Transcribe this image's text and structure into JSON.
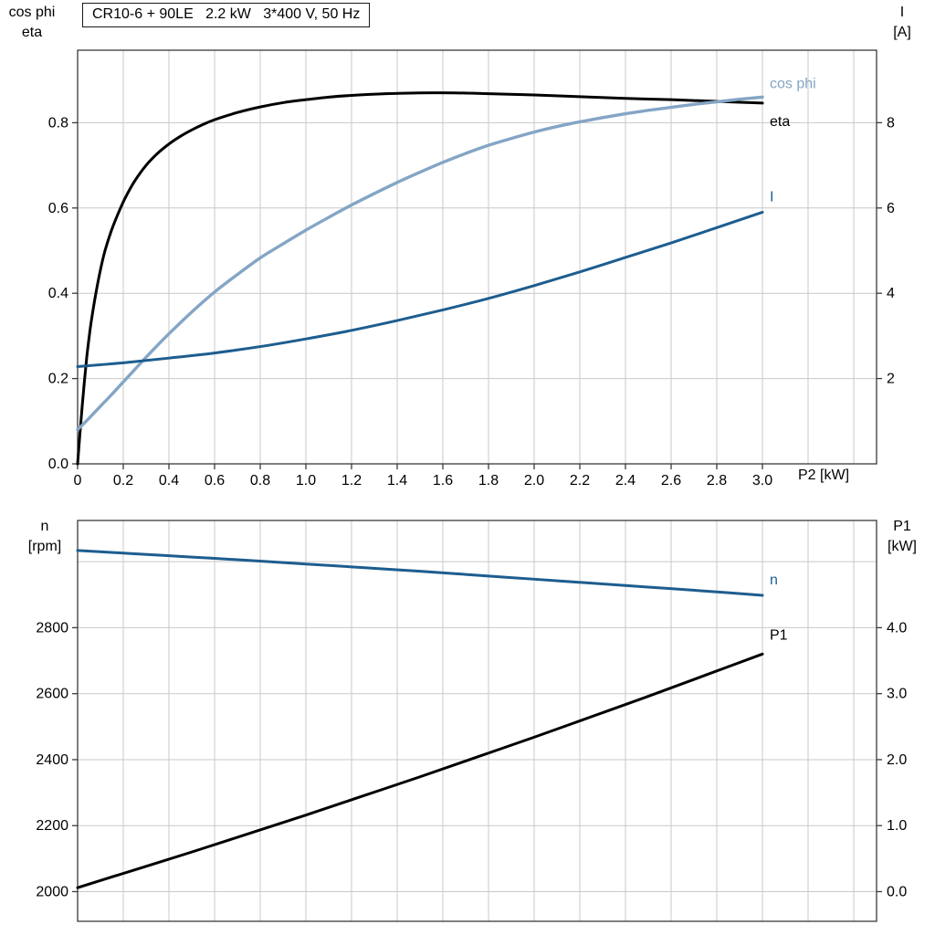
{
  "title_box": {
    "text": "CR10-6 + 90LE   2.2 kW   3*400 V, 50 Hz"
  },
  "colors": {
    "background": "#ffffff",
    "grid": "#c9c9c9",
    "frame": "#3a3a3a",
    "text": "#000000",
    "eta_black": "#000000",
    "cos_phi_blue": "#84a5c5",
    "dark_blue": "#1d5d8f"
  },
  "chart_data": [
    {
      "type": "line",
      "name": "motor-performance-top",
      "title": "CR10-6 + 90LE   2.2 kW   3*400 V, 50 Hz",
      "x": {
        "label": "P2 [kW]",
        "lim": [
          0,
          3.5
        ],
        "grid": [
          0.2,
          0.4,
          0.6,
          0.8,
          1,
          1.2,
          1.4,
          1.6,
          1.8,
          2,
          2.2,
          2.4,
          2.6,
          2.8,
          3,
          3.2,
          3.4
        ],
        "ticks": [
          0,
          0.2,
          0.4,
          0.6,
          0.8,
          1,
          1.2,
          1.4,
          1.6,
          1.8,
          2,
          2.2,
          2.4,
          2.6,
          2.8,
          3
        ],
        "tick_labels": [
          "0",
          "0.2",
          "0.4",
          "0.6",
          "0.8",
          "1.0",
          "1.2",
          "1.4",
          "1.6",
          "1.8",
          "2.0",
          "2.2",
          "2.4",
          "2.6",
          "2.8",
          "3.0"
        ]
      },
      "y_left": {
        "label_lines": [
          "cos phi",
          "eta"
        ],
        "lim": [
          0,
          0.97
        ],
        "grid": [
          0.2,
          0.4,
          0.6,
          0.8
        ],
        "ticks": [
          0,
          0.2,
          0.4,
          0.6,
          0.8
        ],
        "tick_labels": [
          "0.0",
          "0.2",
          "0.4",
          "0.6",
          "0.8"
        ]
      },
      "y_right": {
        "label_lines": [
          "I",
          "[A]"
        ],
        "lim": [
          0,
          9.7
        ],
        "ticks": [
          2,
          4,
          6,
          8
        ],
        "tick_labels": [
          "2",
          "4",
          "6",
          "8"
        ]
      },
      "series": [
        {
          "name": "eta",
          "label": "eta",
          "axis": "left",
          "color": "#000000",
          "points": [
            [
              0,
              0
            ],
            [
              0.01,
              0.07
            ],
            [
              0.02,
              0.135
            ],
            [
              0.03,
              0.195
            ],
            [
              0.04,
              0.25
            ],
            [
              0.05,
              0.295
            ],
            [
              0.06,
              0.335
            ],
            [
              0.08,
              0.4
            ],
            [
              0.1,
              0.455
            ],
            [
              0.12,
              0.5
            ],
            [
              0.15,
              0.55
            ],
            [
              0.18,
              0.59
            ],
            [
              0.21,
              0.625
            ],
            [
              0.25,
              0.663
            ],
            [
              0.3,
              0.7
            ],
            [
              0.35,
              0.728
            ],
            [
              0.4,
              0.75
            ],
            [
              0.45,
              0.768
            ],
            [
              0.5,
              0.783
            ],
            [
              0.55,
              0.796
            ],
            [
              0.6,
              0.807
            ],
            [
              0.7,
              0.824
            ],
            [
              0.8,
              0.837
            ],
            [
              0.9,
              0.847
            ],
            [
              1,
              0.854
            ],
            [
              1.1,
              0.86
            ],
            [
              1.2,
              0.864
            ],
            [
              1.35,
              0.868
            ],
            [
              1.5,
              0.87
            ],
            [
              1.65,
              0.87
            ],
            [
              1.8,
              0.868
            ],
            [
              2,
              0.865
            ],
            [
              2.2,
              0.861
            ],
            [
              2.4,
              0.857
            ],
            [
              2.6,
              0.854
            ],
            [
              2.8,
              0.85
            ],
            [
              3,
              0.846
            ]
          ]
        },
        {
          "name": "cos phi",
          "label": "cos phi",
          "axis": "left",
          "color": "#84a5c5",
          "points": [
            [
              0,
              0.08
            ],
            [
              0.05,
              0.107
            ],
            [
              0.1,
              0.135
            ],
            [
              0.15,
              0.163
            ],
            [
              0.2,
              0.192
            ],
            [
              0.25,
              0.221
            ],
            [
              0.3,
              0.25
            ],
            [
              0.35,
              0.278
            ],
            [
              0.4,
              0.305
            ],
            [
              0.5,
              0.356
            ],
            [
              0.6,
              0.403
            ],
            [
              0.7,
              0.444
            ],
            [
              0.8,
              0.483
            ],
            [
              0.9,
              0.516
            ],
            [
              1,
              0.548
            ],
            [
              1.1,
              0.578
            ],
            [
              1.2,
              0.607
            ],
            [
              1.3,
              0.634
            ],
            [
              1.4,
              0.66
            ],
            [
              1.5,
              0.684
            ],
            [
              1.6,
              0.707
            ],
            [
              1.7,
              0.728
            ],
            [
              1.8,
              0.747
            ],
            [
              1.9,
              0.763
            ],
            [
              2,
              0.778
            ],
            [
              2.1,
              0.791
            ],
            [
              2.2,
              0.802
            ],
            [
              2.3,
              0.812
            ],
            [
              2.4,
              0.821
            ],
            [
              2.5,
              0.829
            ],
            [
              2.6,
              0.836
            ],
            [
              2.7,
              0.843
            ],
            [
              2.8,
              0.849
            ],
            [
              2.9,
              0.855
            ],
            [
              3,
              0.86
            ]
          ]
        },
        {
          "name": "I",
          "label": "I",
          "axis": "right",
          "color": "#1d5d8f",
          "points": [
            [
              0,
              2.28
            ],
            [
              0.2,
              2.37
            ],
            [
              0.4,
              2.48
            ],
            [
              0.6,
              2.6
            ],
            [
              0.8,
              2.75
            ],
            [
              1,
              2.93
            ],
            [
              1.2,
              3.13
            ],
            [
              1.4,
              3.36
            ],
            [
              1.6,
              3.61
            ],
            [
              1.8,
              3.88
            ],
            [
              2,
              4.18
            ],
            [
              2.2,
              4.5
            ],
            [
              2.4,
              4.84
            ],
            [
              2.6,
              5.18
            ],
            [
              2.8,
              5.54
            ],
            [
              3,
              5.9
            ]
          ]
        }
      ]
    },
    {
      "type": "line",
      "name": "motor-performance-bottom",
      "x": {
        "label": "",
        "lim": [
          0,
          3.5
        ],
        "grid": [
          0.2,
          0.4,
          0.6,
          0.8,
          1,
          1.2,
          1.4,
          1.6,
          1.8,
          2,
          2.2,
          2.4,
          2.6,
          2.8,
          3,
          3.2,
          3.4
        ],
        "ticks": [],
        "tick_labels": []
      },
      "y_left": {
        "label_lines": [
          "n",
          "[rpm]"
        ],
        "lim": [
          1910,
          3125
        ],
        "grid": [
          2000,
          2200,
          2400,
          2600,
          2800,
          3000
        ],
        "ticks": [
          2000,
          2200,
          2400,
          2600,
          2800
        ],
        "tick_labels": [
          "2000",
          "2200",
          "2400",
          "2600",
          "2800"
        ]
      },
      "y_right": {
        "label_lines": [
          "P1",
          "[kW]"
        ],
        "lim": [
          -0.45,
          5.625
        ],
        "ticks": [
          0,
          1,
          2,
          3,
          4
        ],
        "tick_labels": [
          "0.0",
          "1.0",
          "2.0",
          "3.0",
          "4.0"
        ]
      },
      "series": [
        {
          "name": "n",
          "label": "n",
          "axis": "left",
          "color": "#1d5d8f",
          "points": [
            [
              0,
              3034
            ],
            [
              0.25,
              3024
            ],
            [
              0.5,
              3014
            ],
            [
              0.75,
              3004
            ],
            [
              1,
              2993
            ],
            [
              1.25,
              2982
            ],
            [
              1.5,
              2971
            ],
            [
              1.75,
              2959
            ],
            [
              2,
              2947
            ],
            [
              2.25,
              2935
            ],
            [
              2.5,
              2923
            ],
            [
              2.75,
              2911
            ],
            [
              3,
              2898
            ]
          ]
        },
        {
          "name": "P1",
          "label": "P1",
          "axis": "right",
          "color": "#000000",
          "points": [
            [
              0,
              0.06
            ],
            [
              0.25,
              0.33
            ],
            [
              0.5,
              0.6
            ],
            [
              0.75,
              0.88
            ],
            [
              1,
              1.16
            ],
            [
              1.25,
              1.45
            ],
            [
              1.5,
              1.74
            ],
            [
              1.75,
              2.04
            ],
            [
              2,
              2.34
            ],
            [
              2.25,
              2.65
            ],
            [
              2.5,
              2.96
            ],
            [
              2.75,
              3.28
            ],
            [
              3,
              3.6
            ]
          ]
        }
      ]
    }
  ]
}
